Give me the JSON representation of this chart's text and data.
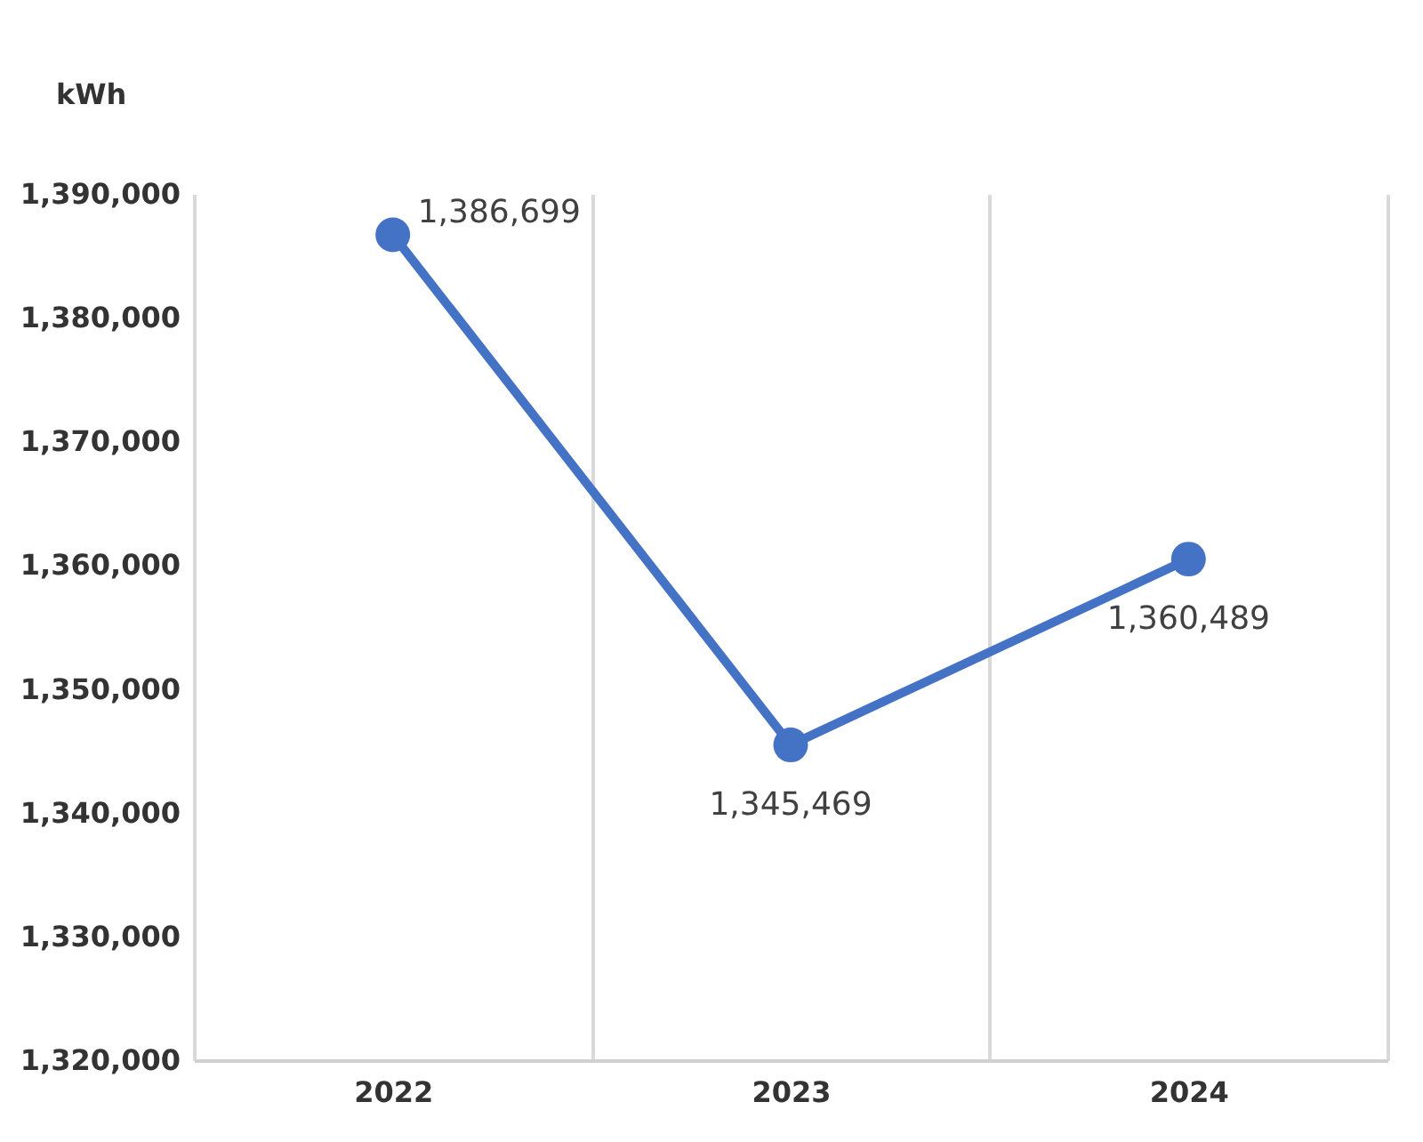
{
  "chart_data": {
    "type": "line",
    "ylabel": "kWh",
    "categories": [
      "2022",
      "2023",
      "2024"
    ],
    "series": [
      {
        "color": "#4472c4",
        "values": [
          1386699,
          1345469,
          1360489
        ],
        "value_labels": [
          "1,386,699",
          "1,345,469",
          "1,360,489"
        ]
      }
    ],
    "ylim": [
      1320000,
      1390000
    ],
    "yticks": [
      {
        "value": 1320000,
        "label": "1,320,000"
      },
      {
        "value": 1330000,
        "label": "1,330,000"
      },
      {
        "value": 1340000,
        "label": "1,340,000"
      },
      {
        "value": 1350000,
        "label": "1,350,000"
      },
      {
        "value": 1360000,
        "label": "1,360,000"
      },
      {
        "value": 1370000,
        "label": "1,370,000"
      },
      {
        "value": 1380000,
        "label": "1,380,000"
      },
      {
        "value": 1390000,
        "label": "1,390,000"
      }
    ],
    "grid": "x",
    "marker": "circle",
    "line_style": "solid"
  }
}
